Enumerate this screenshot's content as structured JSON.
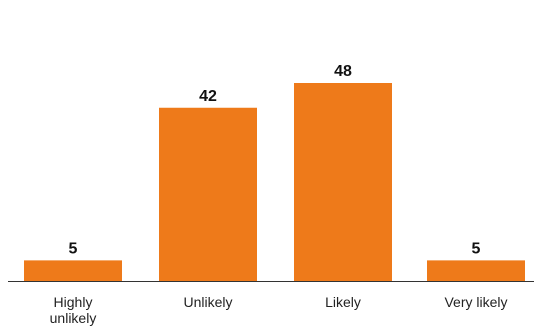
{
  "chart_data": {
    "type": "bar",
    "categories": [
      "Highly unlikely",
      "Unlikely",
      "Likely",
      "Very likely"
    ],
    "category_lines": [
      [
        "Highly",
        "unlikely"
      ],
      [
        "Unlikely"
      ],
      [
        "Likely"
      ],
      [
        "Very likely"
      ]
    ],
    "values": [
      5,
      42,
      48,
      5
    ],
    "value_labels": [
      "5",
      "42",
      "48",
      "5"
    ],
    "title": "",
    "xlabel": "",
    "ylabel": "",
    "ylim": [
      0,
      48
    ],
    "grid": false,
    "legend": "none",
    "bar_color": "#EE7A1A",
    "axis_color": "#333333"
  }
}
